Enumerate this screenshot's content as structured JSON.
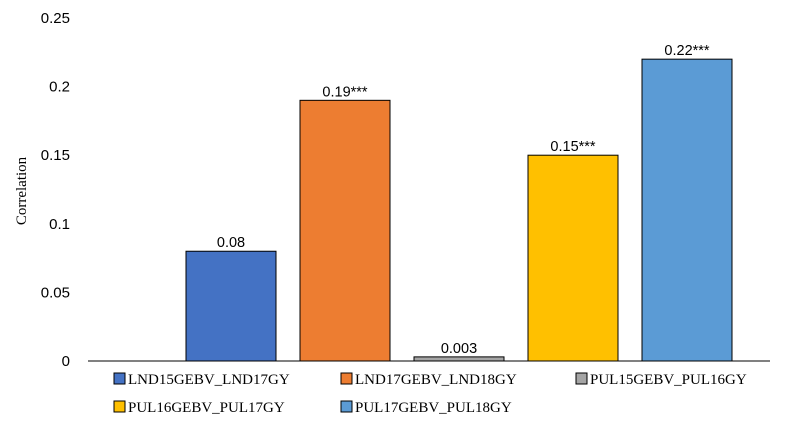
{
  "chart_data": {
    "type": "bar",
    "title": "",
    "xlabel": "",
    "ylabel": "Correlation",
    "ylim": [
      0,
      0.25
    ],
    "yticks": [
      "0",
      "0.05",
      "0.1",
      "0.15",
      "0.2",
      "0.25"
    ],
    "grid": false,
    "legend_position": "bottom",
    "series": [
      {
        "name": "LND15GEBV_LND17GY",
        "value": 0.08,
        "label": "0.08",
        "color": "#4472C4"
      },
      {
        "name": "LND17GEBV_LND18GY",
        "value": 0.19,
        "label": "0.19***",
        "color": "#ED7D31"
      },
      {
        "name": "PUL15GEBV_PUL16GY",
        "value": 0.003,
        "label": "0.003",
        "color": "#A5A5A5"
      },
      {
        "name": "PUL16GEBV_PUL17GY",
        "value": 0.15,
        "label": "0.15***",
        "color": "#FFC000"
      },
      {
        "name": "PUL17GEBV_PUL18GY",
        "value": 0.22,
        "label": "0.22***",
        "color": "#5B9BD5"
      }
    ]
  }
}
